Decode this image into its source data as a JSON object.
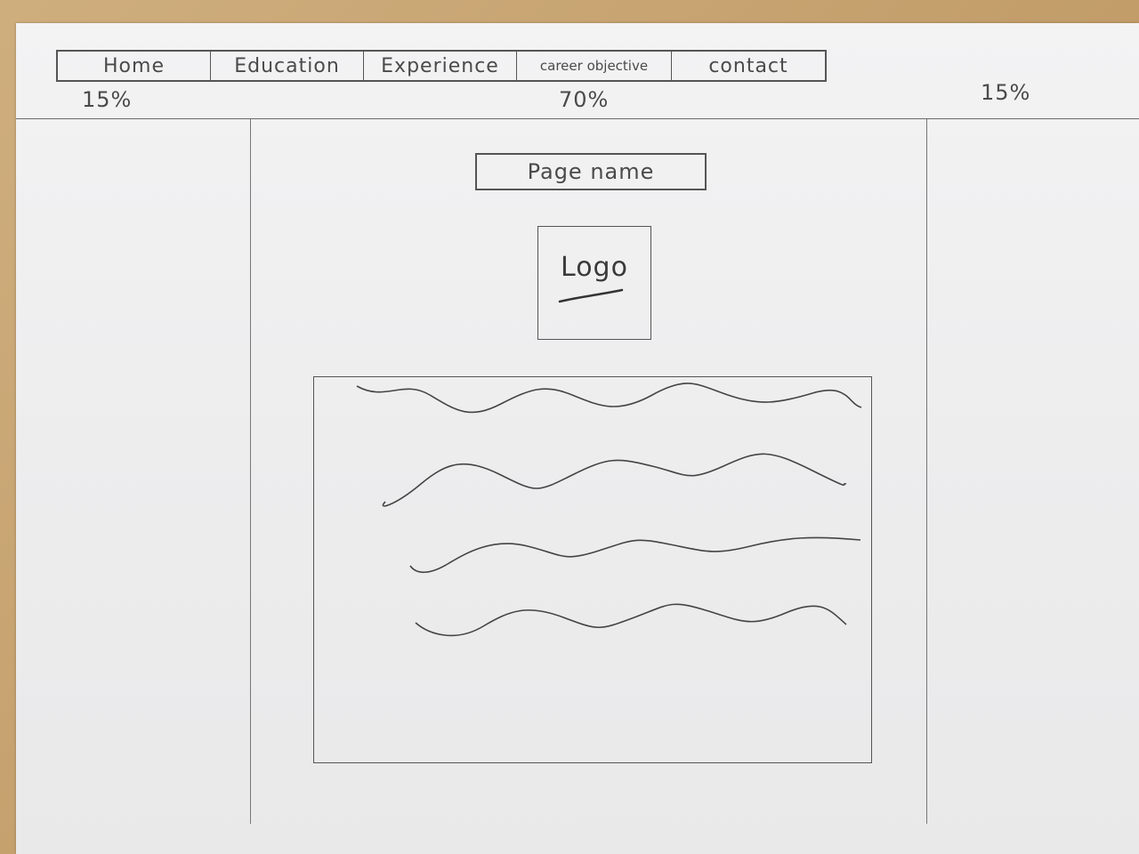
{
  "nav": {
    "items": [
      {
        "label": "Home"
      },
      {
        "label": "Education"
      },
      {
        "label": "Experience"
      },
      {
        "label": "career objective"
      },
      {
        "label": "contact"
      }
    ]
  },
  "layout_labels": {
    "left_percent": "15%",
    "center_percent": "70%",
    "right_percent": "15%"
  },
  "main": {
    "page_name": "Page name",
    "logo_label": "Logo"
  },
  "colors": {
    "pencil": "#4a4a4a",
    "paper": "#efefef",
    "desk": "#c9a877"
  }
}
